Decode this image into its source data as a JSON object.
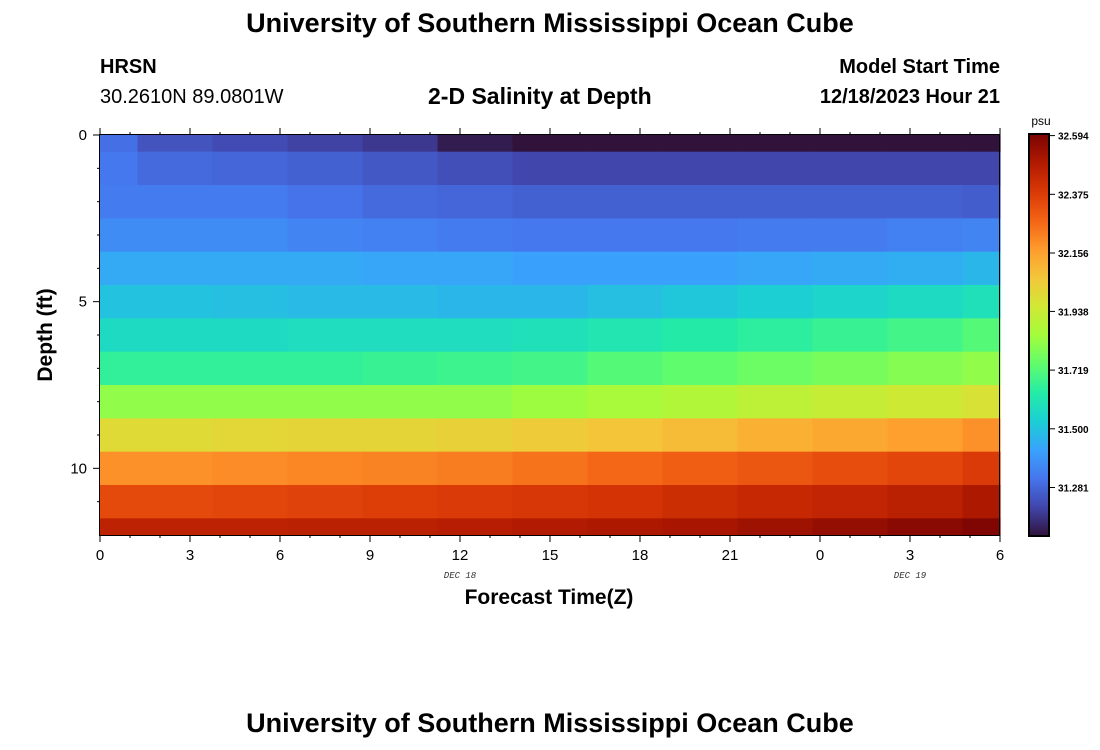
{
  "header": {
    "title": "University of Southern Mississippi Ocean Cube",
    "footer_title": "University of Southern Mississippi Ocean Cube",
    "station": "HRSN",
    "coordinates": "30.2610N  89.0801W",
    "plot_title": "2-D Salinity at Depth",
    "model_start_label": "Model Start Time",
    "model_start_value": "12/18/2023 Hour 21"
  },
  "chart_data": {
    "type": "heatmap",
    "title": "2-D Salinity at Depth",
    "xlabel": "Forecast Time(Z)",
    "ylabel": "Depth (ft)",
    "x_ticks": [
      "0",
      "3",
      "6",
      "9",
      "12",
      "15",
      "18",
      "21",
      "0",
      "3",
      "6"
    ],
    "date_labels": [
      {
        "label": "DEC 18",
        "at_hour": 12
      },
      {
        "label": "DEC 19",
        "at_hour": 27
      }
    ],
    "y_ticks": [
      "0",
      "5",
      "10"
    ],
    "x_range_hours": [
      0,
      30
    ],
    "y_range_ft": [
      0,
      12
    ],
    "column_hours": [
      0,
      1.25,
      3.75,
      6.25,
      8.75,
      11.25,
      13.75,
      16.25,
      18.75,
      21.25,
      23.75,
      26.25,
      28.75,
      30
    ],
    "row_depths_ft": [
      0,
      0.5,
      1.5,
      2.5,
      3.5,
      4.5,
      5.5,
      6.5,
      7.5,
      8.5,
      9.5,
      10.5,
      11.5,
      12
    ],
    "values": [
      [
        31.3,
        31.24,
        31.22,
        31.2,
        31.18,
        31.12,
        31.0,
        31.0,
        31.0,
        31.0,
        31.0,
        31.0,
        31.0
      ],
      [
        31.32,
        31.29,
        31.28,
        31.27,
        31.25,
        31.23,
        31.21,
        31.21,
        31.21,
        31.21,
        31.21,
        31.21,
        31.21
      ],
      [
        31.33,
        31.33,
        31.33,
        31.31,
        31.29,
        31.28,
        31.27,
        31.27,
        31.27,
        31.27,
        31.27,
        31.27,
        31.26
      ],
      [
        31.37,
        31.37,
        31.37,
        31.35,
        31.34,
        31.33,
        31.32,
        31.32,
        31.32,
        31.33,
        31.33,
        31.34,
        31.35
      ],
      [
        31.44,
        31.44,
        31.44,
        31.44,
        31.43,
        31.43,
        31.42,
        31.42,
        31.42,
        31.43,
        31.44,
        31.45,
        31.47
      ],
      [
        31.5,
        31.5,
        31.49,
        31.48,
        31.48,
        31.47,
        31.47,
        31.49,
        31.51,
        31.53,
        31.55,
        31.57,
        31.59
      ],
      [
        31.57,
        31.57,
        31.57,
        31.58,
        31.58,
        31.58,
        31.59,
        31.61,
        31.63,
        31.65,
        31.67,
        31.69,
        31.72
      ],
      [
        31.66,
        31.66,
        31.66,
        31.66,
        31.67,
        31.68,
        31.69,
        31.72,
        31.74,
        31.76,
        31.78,
        31.8,
        31.82
      ],
      [
        31.82,
        31.82,
        31.82,
        31.82,
        31.82,
        31.82,
        31.84,
        31.86,
        31.88,
        31.91,
        31.93,
        31.95,
        31.98
      ],
      [
        32.0,
        32.0,
        32.01,
        32.02,
        32.02,
        32.03,
        32.05,
        32.07,
        32.09,
        32.12,
        32.14,
        32.16,
        32.19
      ],
      [
        32.19,
        32.19,
        32.2,
        32.21,
        32.22,
        32.23,
        32.25,
        32.27,
        32.29,
        32.31,
        32.33,
        32.35,
        32.38
      ],
      [
        32.34,
        32.34,
        32.35,
        32.36,
        32.37,
        32.38,
        32.39,
        32.4,
        32.42,
        32.44,
        32.45,
        32.47,
        32.5
      ],
      [
        32.46,
        32.46,
        32.46,
        32.47,
        32.47,
        32.48,
        32.49,
        32.5,
        32.51,
        32.53,
        32.55,
        32.57,
        32.59
      ]
    ],
    "colorbar": {
      "unit": "psu",
      "min": 31.1,
      "max": 32.6,
      "tick_values": [
        32.594,
        32.375,
        32.156,
        31.938,
        31.719,
        31.5,
        31.281
      ],
      "tick_labels": [
        "32.594",
        "32.375",
        "32.156",
        "31.938",
        "31.719",
        "31.500",
        "31.281"
      ],
      "palette": [
        "#30123b",
        "#4145ab",
        "#4675ed",
        "#39a2fc",
        "#1bcfd4",
        "#24eca6",
        "#61fc6c",
        "#a4fc3b",
        "#d1e834",
        "#f3c63a",
        "#fe9b2d",
        "#f36315",
        "#d93806",
        "#b11901",
        "#7a0402"
      ]
    }
  }
}
